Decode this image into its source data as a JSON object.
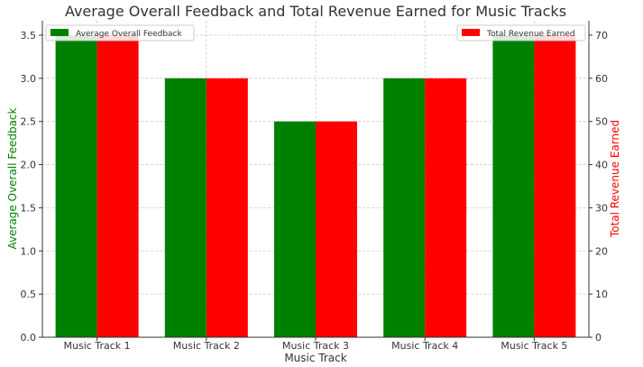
{
  "chart_data": {
    "type": "bar",
    "title": "Average Overall Feedback and Total Revenue Earned for Music Tracks",
    "xlabel": "Music Track",
    "categories": [
      "Music Track 1",
      "Music Track 2",
      "Music Track 3",
      "Music Track 4",
      "Music Track 5"
    ],
    "left_axis": {
      "label": "Average Overall Feedback",
      "color": "#008000",
      "ylim": [
        0,
        3.6667
      ],
      "ticks": [
        "0.0",
        "0.5",
        "1.0",
        "1.5",
        "2.0",
        "2.5",
        "3.0",
        "3.5"
      ]
    },
    "right_axis": {
      "label": "Total Revenue Earned",
      "color": "#ff0000",
      "ylim": [
        0,
        73.333
      ],
      "ticks": [
        "0",
        "10",
        "20",
        "30",
        "40",
        "50",
        "60",
        "70"
      ]
    },
    "series": [
      {
        "name": "Average Overall Feedback",
        "axis": "left",
        "color": "#008000",
        "values": [
          3.5,
          3.0,
          2.5,
          3.0,
          3.5
        ]
      },
      {
        "name": "Total Revenue Earned",
        "axis": "right",
        "color": "#ff0000",
        "values": [
          70,
          60,
          50,
          60,
          70
        ]
      }
    ],
    "grid": true,
    "legend": [
      "top-left",
      "top-right"
    ]
  }
}
